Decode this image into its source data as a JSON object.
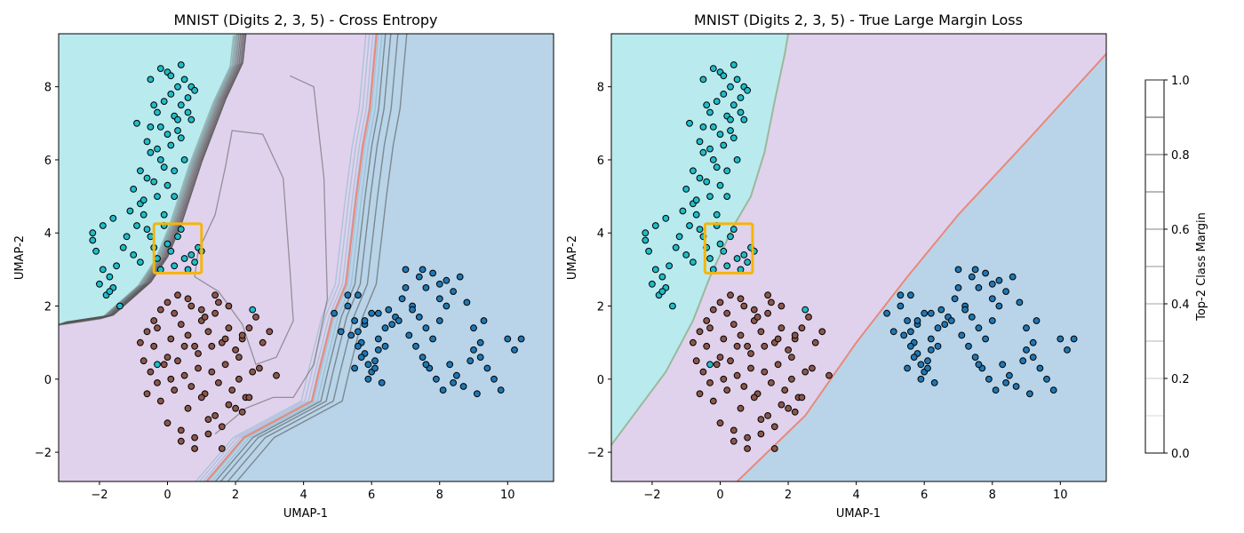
{
  "chart_data": [
    {
      "type": "scatter",
      "title": "MNIST (Digits 2, 3, 5) - Cross Entropy",
      "xlabel": "UMAP-1",
      "ylabel": "UMAP-2",
      "xlim": [
        -3.2,
        11.35
      ],
      "ylim": [
        -2.8,
        9.45
      ],
      "xticks": [
        -2,
        0,
        2,
        4,
        6,
        8,
        10
      ],
      "yticks": [
        -2,
        0,
        2,
        4,
        6,
        8
      ],
      "grid": false,
      "region_colors": {
        "cyan": "#b9eaee",
        "purple": "#e0d2ec",
        "blue": "#b9d4e8"
      },
      "point_colors": {
        "cyan": "#1fbcc9",
        "brown": "#8c564b",
        "blue": "#1f77b4"
      },
      "highlight_box": {
        "x": [
          -0.4,
          1.0
        ],
        "y": [
          2.9,
          4.25
        ],
        "color": "#f5b50a"
      },
      "boundaries": [
        {
          "name": "cyan-purple",
          "points": [
            [
              -3.2,
              1.5
            ],
            [
              -1.8,
              1.7
            ],
            [
              -0.7,
              2.6
            ],
            [
              -0.2,
              3.3
            ],
            [
              0.2,
              4.2
            ],
            [
              0.8,
              5.9
            ],
            [
              1.5,
              7.6
            ],
            [
              2.0,
              8.6
            ],
            [
              2.1,
              9.45
            ]
          ]
        },
        {
          "name": "purple-blue",
          "points": [
            [
              1.2,
              -2.8
            ],
            [
              2.3,
              -1.6
            ],
            [
              3.4,
              -1.05
            ],
            [
              4.3,
              -0.6
            ],
            [
              4.5,
              0.2
            ],
            [
              4.9,
              1.7
            ],
            [
              5.3,
              2.6
            ],
            [
              5.6,
              5.0
            ],
            [
              5.8,
              6.4
            ],
            [
              6.0,
              7.4
            ],
            [
              6.2,
              9.45
            ]
          ]
        }
      ],
      "contour_color": "#555555",
      "series": [
        {
          "x": [
            -2.2,
            -2.1,
            -1.9,
            -1.7,
            -1.6,
            -1.8,
            -2.0,
            -1.5,
            -1.3,
            -1.9,
            -2.2,
            -1.6,
            -1.2,
            -1.0,
            -0.8,
            -1.4,
            -1.7,
            -1.1,
            -0.9,
            -0.8,
            -0.7,
            -0.6,
            -0.5,
            -0.4,
            -0.3,
            -0.2,
            -0.1,
            0.0,
            0.1,
            0.2,
            0.3,
            0.4,
            0.5,
            0.6,
            0.7,
            0.8,
            0.9,
            1.0,
            -0.5,
            -0.3,
            -0.1,
            0.1,
            0.3,
            0.5,
            0.7,
            -0.9,
            -0.6,
            -0.2,
            0.2,
            0.4,
            0.6,
            0.8,
            0.0,
            -0.4,
            0.3,
            -0.8,
            -0.5,
            -0.2,
            0.1,
            0.4,
            -0.6,
            -0.3,
            0.0,
            0.2,
            0.5,
            -1.0,
            -0.7,
            -0.4,
            -0.1,
            -0.3,
            0.0,
            0.3,
            0.6,
            -0.5,
            -0.2,
            0.1,
            0.4,
            0.7,
            0.2,
            -0.1,
            2.5,
            -0.3
          ],
          "y": [
            3.8,
            3.5,
            3.0,
            2.8,
            2.5,
            2.3,
            2.6,
            3.1,
            3.6,
            4.2,
            4.0,
            4.4,
            3.9,
            3.4,
            3.2,
            2.0,
            2.4,
            4.6,
            4.2,
            4.8,
            4.5,
            4.1,
            3.9,
            3.6,
            3.3,
            3.0,
            4.2,
            3.7,
            3.5,
            3.1,
            3.9,
            4.1,
            3.3,
            3.0,
            3.4,
            3.2,
            3.6,
            3.5,
            6.9,
            7.3,
            7.6,
            7.8,
            8.0,
            8.2,
            8.0,
            7.0,
            6.5,
            6.9,
            7.2,
            7.5,
            7.7,
            7.9,
            8.4,
            7.5,
            6.8,
            5.7,
            6.2,
            6.0,
            6.4,
            6.6,
            5.5,
            5.0,
            5.3,
            5.7,
            6.0,
            5.2,
            4.9,
            5.4,
            5.8,
            6.3,
            6.7,
            7.1,
            7.3,
            8.2,
            8.5,
            8.3,
            8.6,
            7.1,
            5.0,
            4.5,
            1.9,
            0.4
          ],
          "name": ""
        },
        {
          "x": [
            -0.8,
            -0.6,
            -0.4,
            -0.2,
            0.0,
            0.2,
            0.4,
            0.6,
            0.8,
            1.0,
            1.2,
            1.4,
            1.6,
            1.8,
            2.0,
            2.2,
            2.4,
            2.6,
            2.8,
            3.0,
            -0.7,
            -0.5,
            -0.3,
            -0.1,
            0.1,
            0.3,
            0.5,
            0.7,
            0.9,
            1.1,
            1.3,
            1.5,
            1.7,
            1.9,
            2.1,
            2.3,
            2.5,
            -0.6,
            -0.2,
            0.2,
            0.6,
            1.0,
            1.4,
            1.8,
            2.2,
            0.0,
            0.4,
            0.8,
            1.2,
            1.6,
            2.0,
            0.3,
            0.7,
            1.1,
            1.5,
            -0.4,
            0.0,
            0.5,
            0.9,
            1.3,
            1.7,
            2.1,
            2.7,
            3.2,
            0.4,
            0.8,
            1.2,
            1.6,
            2.4,
            -0.3,
            0.1,
            0.6,
            1.0,
            1.4,
            1.8,
            2.2
          ],
          "y": [
            1.0,
            1.3,
            1.6,
            1.9,
            2.1,
            1.8,
            1.5,
            1.2,
            0.9,
            1.6,
            1.3,
            1.8,
            1.0,
            1.4,
            0.8,
            1.1,
            1.4,
            1.7,
            1.0,
            1.3,
            0.5,
            0.2,
            -0.1,
            0.4,
            0.0,
            0.5,
            0.1,
            -0.2,
            0.3,
            -0.4,
            0.2,
            -0.1,
            0.4,
            -0.3,
            0.0,
            -0.5,
            0.2,
            -0.4,
            -0.6,
            -0.3,
            -0.8,
            -0.5,
            -1.0,
            -0.7,
            -0.9,
            -1.2,
            -1.4,
            -1.6,
            -1.1,
            -1.3,
            -0.8,
            2.3,
            2.0,
            1.7,
            2.1,
            0.9,
            0.6,
            0.9,
            0.7,
            0.9,
            1.1,
            0.6,
            0.3,
            0.1,
            -1.7,
            -1.9,
            -1.5,
            -1.9,
            -0.5,
            1.4,
            1.1,
            2.2,
            1.9,
            2.3,
            2.0,
            1.2
          ],
          "name": ""
        },
        {
          "x": [
            5.3,
            5.5,
            5.6,
            5.7,
            5.8,
            5.9,
            6.0,
            6.1,
            6.2,
            5.4,
            5.6,
            5.8,
            6.0,
            6.2,
            6.4,
            5.5,
            5.7,
            5.9,
            6.1,
            6.3,
            6.5,
            6.7,
            6.9,
            7.0,
            7.2,
            7.4,
            7.6,
            7.8,
            8.0,
            7.1,
            7.3,
            7.5,
            7.7,
            7.9,
            8.1,
            8.3,
            8.5,
            8.7,
            8.9,
            9.0,
            9.2,
            9.4,
            9.6,
            9.8,
            10.0,
            10.2,
            10.4,
            8.2,
            8.4,
            8.6,
            8.8,
            9.0,
            9.2,
            7.0,
            7.4,
            7.8,
            8.2,
            6.8,
            7.2,
            7.6,
            8.0,
            6.6,
            6.4,
            6.2,
            5.8,
            5.6,
            7.6,
            8.4,
            9.1,
            9.3,
            8.0,
            7.5,
            5.1,
            4.9,
            5.3
          ],
          "y": [
            2.0,
            1.6,
            1.3,
            1.0,
            0.7,
            0.4,
            0.2,
            0.5,
            0.8,
            1.2,
            0.9,
            1.5,
            1.8,
            1.1,
            1.4,
            0.3,
            0.6,
            0.0,
            0.3,
            -0.1,
            1.9,
            1.7,
            2.2,
            2.5,
            2.0,
            1.7,
            1.4,
            1.1,
            1.6,
            1.2,
            0.9,
            0.6,
            0.3,
            0.0,
            -0.3,
            0.4,
            0.1,
            -0.2,
            0.5,
            0.8,
            0.6,
            0.3,
            0.0,
            -0.3,
            1.1,
            0.8,
            1.1,
            2.0,
            2.4,
            2.8,
            2.1,
            1.4,
            1.0,
            3.0,
            2.8,
            2.9,
            2.7,
            1.6,
            1.9,
            2.5,
            2.2,
            1.5,
            0.9,
            1.8,
            1.6,
            2.3,
            0.4,
            -0.1,
            -0.4,
            1.6,
            2.6,
            3.0,
            1.3,
            1.8,
            2.3
          ],
          "name": ""
        }
      ]
    },
    {
      "type": "scatter",
      "title": "MNIST (Digits 2, 3, 5) - True Large Margin Loss",
      "xlabel": "UMAP-1",
      "ylabel": "UMAP-2",
      "xlim": [
        -3.2,
        11.35
      ],
      "ylim": [
        -2.8,
        9.45
      ],
      "xticks": [
        -2,
        0,
        2,
        4,
        6,
        8,
        10
      ],
      "yticks": [
        -2,
        0,
        2,
        4,
        6,
        8
      ],
      "grid": false,
      "region_colors": {
        "cyan": "#b9eaee",
        "purple": "#e0d2ec",
        "blue": "#b9d4e8"
      },
      "highlight_box": {
        "x": [
          -0.45,
          0.95
        ],
        "y": [
          2.9,
          4.25
        ],
        "color": "#f5b50a"
      },
      "boundaries": [
        {
          "name": "cyan-purple",
          "points": [
            [
              -3.2,
              -1.8
            ],
            [
              -1.6,
              0.2
            ],
            [
              -0.8,
              1.6
            ],
            [
              -0.3,
              2.8
            ],
            [
              0.4,
              4.2
            ],
            [
              0.9,
              5.0
            ],
            [
              1.3,
              6.2
            ],
            [
              1.6,
              7.6
            ],
            [
              1.9,
              8.9
            ],
            [
              2.0,
              9.45
            ]
          ]
        },
        {
          "name": "purple-blue",
          "points": [
            [
              0.5,
              -2.8
            ],
            [
              2.5,
              -1.0
            ],
            [
              4.0,
              1.0
            ],
            [
              5.5,
              2.8
            ],
            [
              7.0,
              4.5
            ],
            [
              9.0,
              6.5
            ],
            [
              11.35,
              8.9
            ]
          ]
        }
      ]
    }
  ],
  "colorbar": {
    "label": "Top-2 Class Margin",
    "range": [
      0.0,
      1.0
    ],
    "ticks": [
      "0.0",
      "0.2",
      "0.4",
      "0.6",
      "0.8",
      "1.0"
    ]
  }
}
